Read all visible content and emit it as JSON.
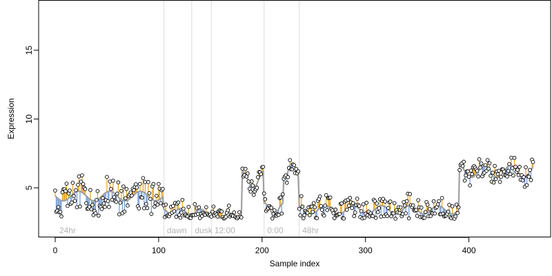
{
  "chart_data": {
    "type": "scatter",
    "xlabel": "Sample index",
    "ylabel": "Expression",
    "xlim": [
      -16,
      479
    ],
    "ylim": [
      1.4,
      18.6
    ],
    "xticks": [
      0,
      100,
      200,
      300,
      400
    ],
    "yticks": [
      5,
      10,
      15
    ],
    "colors": {
      "up": "#e8a21a",
      "down": "#6f97d6",
      "trend": "#a0a0a0",
      "divider": "#dcdcdc",
      "point_fill": "#ffffff",
      "point_stroke": "#000000"
    },
    "regions": [
      {
        "label": "24hr",
        "x": 2
      },
      {
        "label": "dawn",
        "x": 106
      },
      {
        "label": "dusk",
        "x": 133
      },
      {
        "label": "12:00",
        "x": 152
      },
      {
        "label": "0:00",
        "x": 203
      },
      {
        "label": "48hr",
        "x": 237
      }
    ],
    "dividers": [
      105,
      132,
      151,
      202,
      236
    ],
    "segments": [
      {
        "start": 0,
        "end": 104,
        "trend": 4.4,
        "amp": 0.35,
        "spread": 1.25,
        "freq": 0.21,
        "p": 3.1
      },
      {
        "start": 105,
        "end": 131,
        "trend": 3.3,
        "amp": 0.2,
        "spread": 0.75,
        "freq": 0.35,
        "p": 3.2
      },
      {
        "start": 132,
        "end": 150,
        "trend": 3.2,
        "amp": 0.25,
        "spread": 0.7,
        "freq": 0.3,
        "p": 3.4
      },
      {
        "start": 151,
        "end": 180,
        "trend": 3.0,
        "amp": 0.2,
        "spread": 0.55,
        "freq": 0.4,
        "p": 3.6
      },
      {
        "start": 181,
        "end": 201,
        "trend": 5.6,
        "amp": 0.6,
        "spread": 0.55,
        "freq": 0.3,
        "p": 3.8
      },
      {
        "start": 202,
        "end": 220,
        "trend": 3.5,
        "amp": 0.4,
        "spread": 0.8,
        "freq": 0.33,
        "p": 4.0
      },
      {
        "start": 221,
        "end": 235,
        "trend": 6.2,
        "amp": 0.6,
        "spread": 0.6,
        "freq": 0.4,
        "p": 4.2
      },
      {
        "start": 236,
        "end": 390,
        "trend": 3.4,
        "amp": 0.3,
        "spread": 0.9,
        "freq": 0.23,
        "p": 4.4
      },
      {
        "start": 391,
        "end": 462,
        "trend": 6.2,
        "amp": 0.45,
        "spread": 0.75,
        "freq": 0.25,
        "p": 4.6
      }
    ]
  }
}
